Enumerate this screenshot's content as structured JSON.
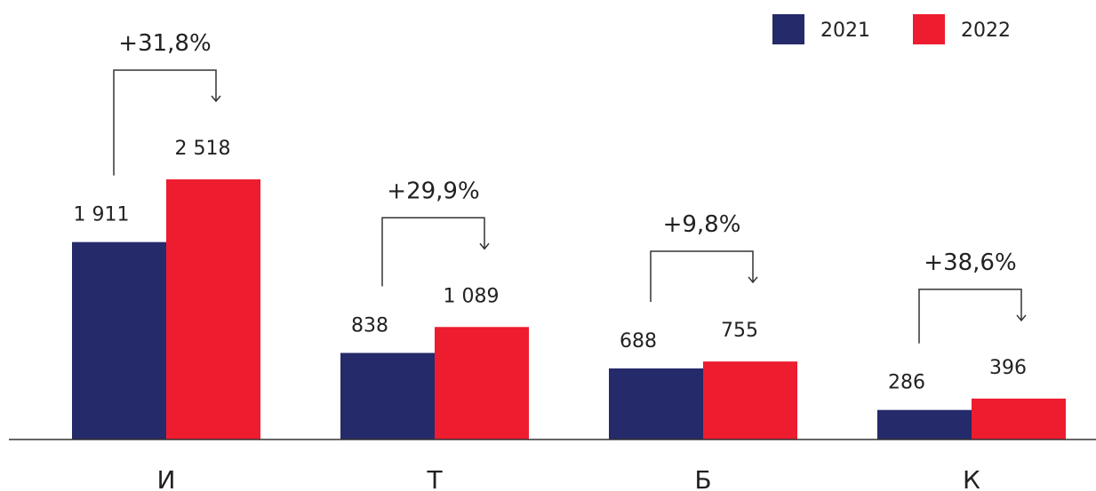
{
  "chart_data": {
    "type": "bar",
    "categories": [
      "И",
      "Т",
      "Б",
      "К"
    ],
    "series": [
      {
        "name": "2021",
        "color": "#252a6a",
        "values": [
          1911,
          838,
          688,
          286
        ],
        "labels": [
          "1 911",
          "838",
          "688",
          "286"
        ]
      },
      {
        "name": "2022",
        "color": "#ee1c2f",
        "values": [
          2518,
          1089,
          755,
          396
        ],
        "labels": [
          "2 518",
          "1 089",
          "755",
          "396"
        ]
      }
    ],
    "changes": [
      "+31,8%",
      "+29,9%",
      "+9,8%",
      "+38,6%"
    ],
    "title": "",
    "xlabel": "",
    "ylabel": "",
    "ylim": [
      0,
      2518
    ],
    "grid": false,
    "legend": "top-right"
  }
}
